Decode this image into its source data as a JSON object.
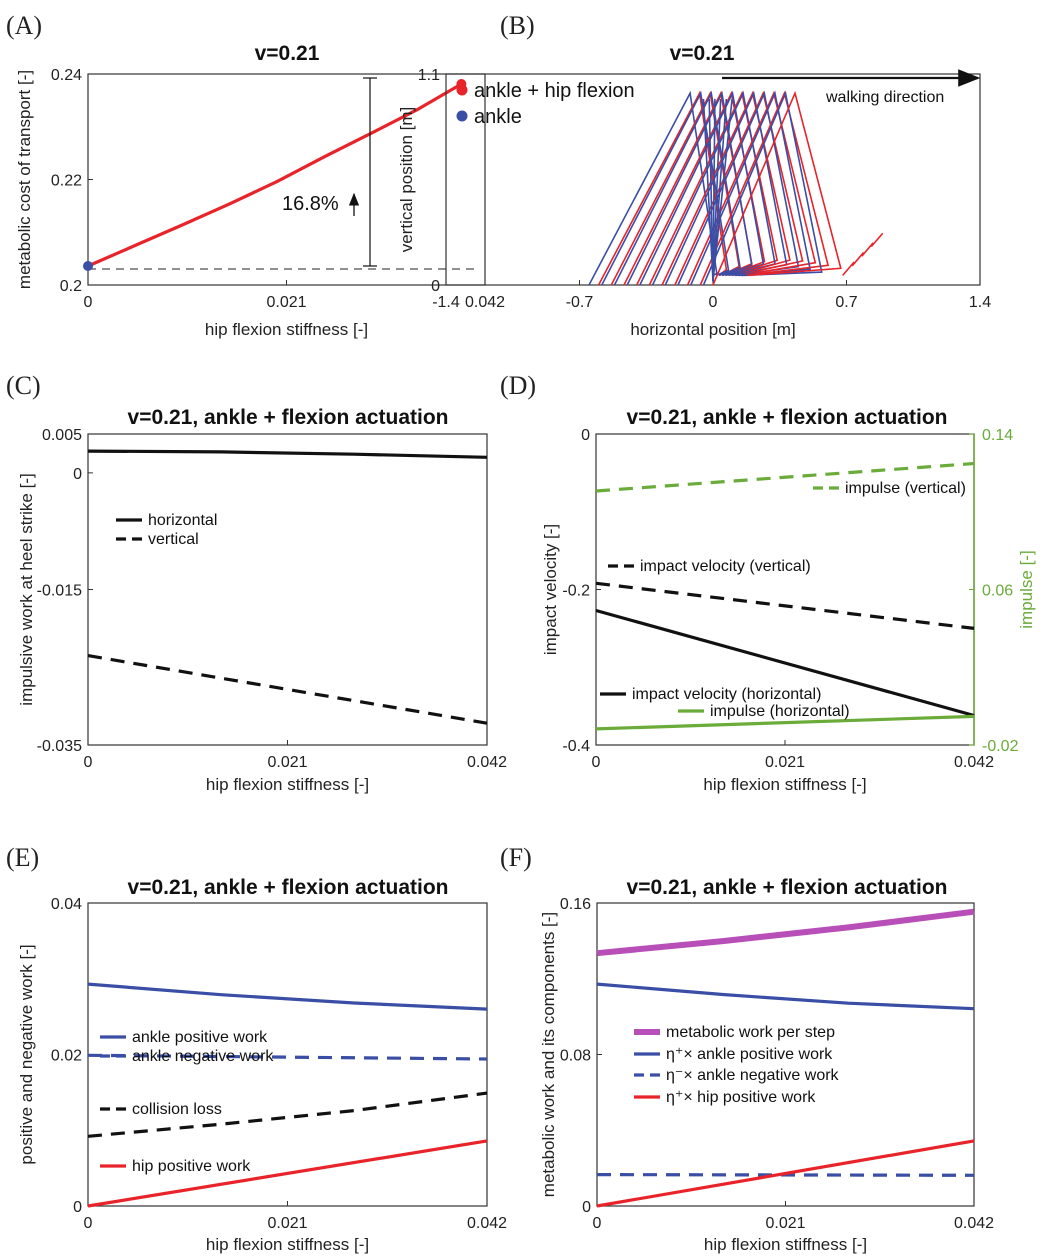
{
  "panels": {
    "A": {
      "label": "(A)",
      "title": "v=0.21",
      "annotation": "16.8%"
    },
    "B": {
      "label": "(B)",
      "title": "v=0.21",
      "direction_label": "walking direction"
    },
    "C": {
      "label": "(C)",
      "title": "v=0.21, ankle + flexion actuation"
    },
    "D": {
      "label": "(D)",
      "title": "v=0.21, ankle + flexion actuation"
    },
    "E": {
      "label": "(E)",
      "title": "v=0.21, ankle + flexion actuation"
    },
    "F": {
      "label": "(F)",
      "title": "v=0.21, ankle + flexion actuation"
    }
  },
  "colors": {
    "red": "#e8242a",
    "blue": "#3a4ea6",
    "black": "#111111",
    "green": "#6aab3a",
    "magenta": "#b84fb8"
  },
  "chart_data": [
    {
      "id": "A",
      "type": "line",
      "title": "v=0.21",
      "xlabel": "hip flexion stiffness [-]",
      "ylabel": "metabolic cost of transport [-]",
      "xlim": [
        0,
        0.042
      ],
      "ylim": [
        0.2,
        0.24
      ],
      "xticks": [
        "0",
        "0.021",
        "0.042"
      ],
      "yticks": [
        "0.2",
        "0.22",
        "0.24"
      ],
      "series": [
        {
          "x": [
            0,
            0.005,
            0.01,
            0.015,
            0.02,
            0.025,
            0.03,
            0.035,
            0.0395
          ],
          "y": [
            0.2036,
            0.2075,
            0.2114,
            0.2154,
            0.2196,
            0.2243,
            0.2288,
            0.2334,
            0.2381
          ],
          "color": "red",
          "style": "solid"
        }
      ],
      "points": [
        {
          "x": 0,
          "y": 0.2036,
          "color": "blue"
        },
        {
          "x": 0.0395,
          "y": 0.2381,
          "color": "red"
        }
      ],
      "reference_y": 0.2036,
      "annotation": "16.8%"
    },
    {
      "id": "B",
      "type": "line",
      "title": "v=0.21",
      "xlabel": "horizontal position [m]",
      "ylabel": "vertical position [m]",
      "xlim": [
        -1.4,
        1.4
      ],
      "ylim": [
        0,
        1.1
      ],
      "xticks": [
        "-1.4",
        "-0.7",
        "0",
        "0.7",
        "1.4"
      ],
      "yticks": [
        "0",
        "1.1"
      ],
      "legend": [
        {
          "name": "ankle + hip flexion",
          "color": "red"
        },
        {
          "name": "ankle",
          "color": "blue"
        }
      ]
    },
    {
      "id": "C",
      "type": "line",
      "title": "v=0.21, ankle + flexion actuation",
      "xlabel": "hip flexion stiffness [-]",
      "ylabel": "impulsive work at heel strike [-]",
      "xlim": [
        0,
        0.042
      ],
      "ylim": [
        -0.035,
        0.005
      ],
      "xticks": [
        "0",
        "0.021",
        "0.042"
      ],
      "yticks": [
        "0.005",
        "0",
        "-0.015",
        "-0.035"
      ],
      "ytick_values": [
        0.005,
        0,
        -0.015,
        -0.035
      ],
      "series": [
        {
          "name": "horizontal",
          "x": [
            0,
            0.014,
            0.028,
            0.042
          ],
          "y": [
            0.0028,
            0.0027,
            0.0024,
            0.002
          ],
          "color": "black",
          "style": "solid"
        },
        {
          "name": "vertical",
          "x": [
            0,
            0.042
          ],
          "y": [
            -0.0235,
            -0.0322
          ],
          "color": "black",
          "style": "dashed"
        }
      ]
    },
    {
      "id": "D",
      "type": "line",
      "title": "v=0.21, ankle + flexion actuation",
      "xlabel": "hip flexion stiffness [-]",
      "ylabel": "impact velocity [-]",
      "y2label": "impulse [-]",
      "xlim": [
        0,
        0.042
      ],
      "ylim": [
        -0.4,
        0
      ],
      "y2lim": [
        -0.02,
        0.14
      ],
      "xticks": [
        "0",
        "0.021",
        "0.042"
      ],
      "yticks": [
        "0",
        "-0.2",
        "-0.4"
      ],
      "y2ticks": [
        "0.14",
        "0.06",
        "-0.02"
      ],
      "ytick_values": [
        0,
        -0.2,
        -0.4
      ],
      "y2tick_values": [
        0.14,
        0.06,
        -0.02
      ],
      "series": [
        {
          "name": "impulse (vertical)",
          "axis": "y2",
          "x": [
            0,
            0.042
          ],
          "y": [
            0.1107,
            0.1248
          ],
          "color": "green",
          "style": "dashed"
        },
        {
          "name": "impact velocity (vertical)",
          "axis": "y",
          "x": [
            0,
            0.042
          ],
          "y": [
            -0.192,
            -0.25
          ],
          "color": "black",
          "style": "dashed"
        },
        {
          "name": "impact velocity (horizontal)",
          "axis": "y",
          "x": [
            0,
            0.042
          ],
          "y": [
            -0.227,
            -0.362
          ],
          "color": "black",
          "style": "solid"
        },
        {
          "name": "impulse (horizontal)",
          "axis": "y2",
          "x": [
            0,
            0.042
          ],
          "y": [
            -0.0117,
            -0.0053
          ],
          "color": "green",
          "style": "solid"
        }
      ]
    },
    {
      "id": "E",
      "type": "line",
      "title": "v=0.21, ankle + flexion actuation",
      "xlabel": "hip flexion stiffness [-]",
      "ylabel": "positive and negative work [-]",
      "xlim": [
        0,
        0.042
      ],
      "ylim": [
        0,
        0.04
      ],
      "xticks": [
        "0",
        "0.021",
        "0.042"
      ],
      "yticks": [
        "0",
        "0.02",
        "0.04"
      ],
      "ytick_values": [
        0,
        0.02,
        0.04
      ],
      "series": [
        {
          "name": "ankle positive work",
          "x": [
            0,
            0.014,
            0.028,
            0.042
          ],
          "y": [
            0.0293,
            0.0279,
            0.0268,
            0.026
          ],
          "color": "blue",
          "style": "solid"
        },
        {
          "name": "ankle negative work",
          "x": [
            0,
            0.042
          ],
          "y": [
            0.0199,
            0.0194
          ],
          "color": "blue",
          "style": "dashed"
        },
        {
          "name": "collision loss",
          "x": [
            0,
            0.014,
            0.028,
            0.042
          ],
          "y": [
            0.0092,
            0.0108,
            0.0126,
            0.0149
          ],
          "color": "black",
          "style": "dashed"
        },
        {
          "name": "hip positive work",
          "x": [
            0,
            0.042
          ],
          "y": [
            0,
            0.0086
          ],
          "color": "red",
          "style": "solid"
        }
      ]
    },
    {
      "id": "F",
      "type": "line",
      "title": "v=0.21, ankle + flexion actuation",
      "xlabel": "hip flexion stiffness [-]",
      "ylabel": "metabolic work and its components [-]",
      "xlim": [
        0,
        0.042
      ],
      "ylim": [
        0,
        0.16
      ],
      "xticks": [
        "0",
        "0.021",
        "0.042"
      ],
      "yticks": [
        "0",
        "0.08",
        "0.16"
      ],
      "ytick_values": [
        0,
        0.08,
        0.16
      ],
      "series": [
        {
          "name": "metabolic work per step",
          "x": [
            0,
            0.014,
            0.028,
            0.042
          ],
          "y": [
            0.1335,
            0.1399,
            0.1471,
            0.1554
          ],
          "color": "magenta",
          "style": "thick"
        },
        {
          "name": "η⁺× ankle positive work",
          "x": [
            0,
            0.014,
            0.028,
            0.042
          ],
          "y": [
            0.1172,
            0.1117,
            0.1071,
            0.1042
          ],
          "color": "blue",
          "style": "solid"
        },
        {
          "name": "η⁻× ankle negative work",
          "x": [
            0,
            0.042
          ],
          "y": [
            0.0166,
            0.0162
          ],
          "color": "blue",
          "style": "dashed"
        },
        {
          "name": "η⁺× hip positive work",
          "x": [
            0,
            0.042
          ],
          "y": [
            0,
            0.0344
          ],
          "color": "red",
          "style": "solid"
        }
      ]
    }
  ]
}
